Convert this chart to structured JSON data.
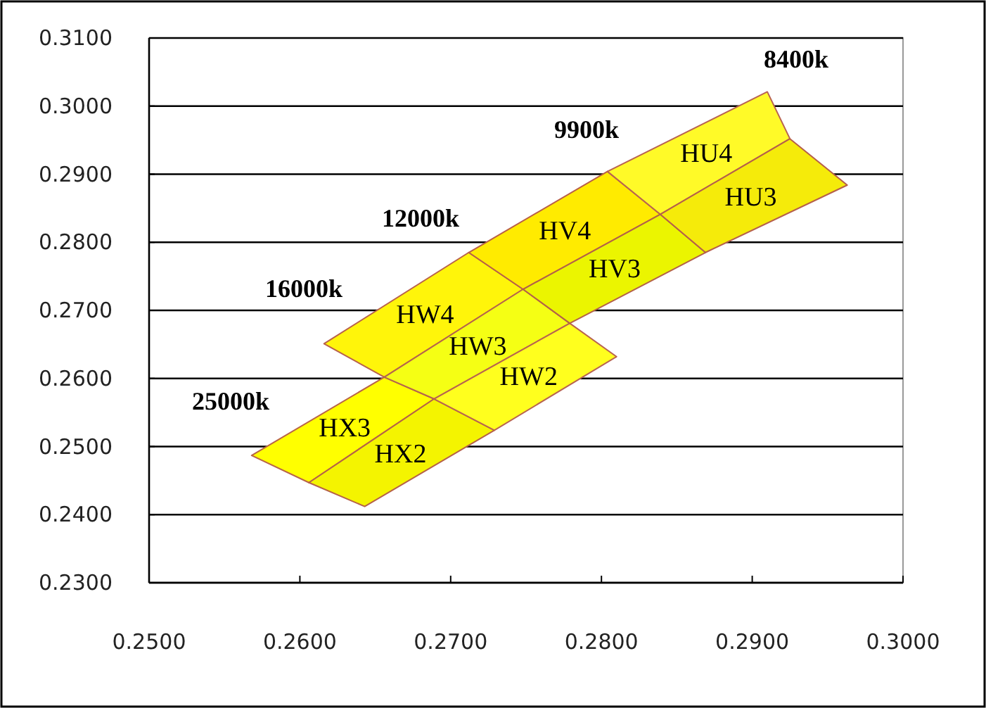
{
  "chart_data": {
    "type": "area",
    "xlim": [
      0.25,
      0.3
    ],
    "ylim": [
      0.23,
      0.31
    ],
    "xticks": [
      {
        "value": 0.25,
        "label": "0.2500"
      },
      {
        "value": 0.26,
        "label": "0.2600"
      },
      {
        "value": 0.27,
        "label": "0.2700"
      },
      {
        "value": 0.28,
        "label": "0.2800"
      },
      {
        "value": 0.29,
        "label": "0.2900"
      },
      {
        "value": 0.3,
        "label": "0.3000"
      }
    ],
    "yticks": [
      {
        "value": 0.23,
        "label": "0.2300"
      },
      {
        "value": 0.24,
        "label": "0.2400"
      },
      {
        "value": 0.25,
        "label": "0.2500"
      },
      {
        "value": 0.26,
        "label": "0.2600"
      },
      {
        "value": 0.27,
        "label": "0.2700"
      },
      {
        "value": 0.28,
        "label": "0.2800"
      },
      {
        "value": 0.29,
        "label": "0.2900"
      },
      {
        "value": 0.3,
        "label": "0.3000"
      },
      {
        "value": 0.31,
        "label": "0.3100"
      }
    ],
    "grid": "y",
    "series": [
      {
        "name": "HX3",
        "color": "#ffff00",
        "x": [
          0.2568,
          0.2656,
          0.2689,
          0.2606,
          0.2568
        ],
        "values": [
          0.2487,
          0.2602,
          0.257,
          0.2447,
          0.2487
        ]
      },
      {
        "name": "HX2",
        "color": "#f4f400",
        "x": [
          0.2606,
          0.2689,
          0.2729,
          0.2643,
          0.2606
        ],
        "values": [
          0.2447,
          0.257,
          0.2524,
          0.2412,
          0.2447
        ]
      },
      {
        "name": "HW4",
        "color": "#fff50a",
        "x": [
          0.2616,
          0.2712,
          0.2748,
          0.2656,
          0.2616
        ],
        "values": [
          0.2651,
          0.2785,
          0.2731,
          0.2602,
          0.2651
        ]
      },
      {
        "name": "HW3",
        "color": "#f5ff14",
        "x": [
          0.2656,
          0.2748,
          0.2779,
          0.2689,
          0.2656
        ],
        "values": [
          0.2602,
          0.2731,
          0.2681,
          0.257,
          0.2602
        ]
      },
      {
        "name": "HW2",
        "color": "#ffff1e",
        "x": [
          0.2689,
          0.2779,
          0.281,
          0.2729,
          0.2689
        ],
        "values": [
          0.257,
          0.2681,
          0.2632,
          0.2524,
          0.257
        ]
      },
      {
        "name": "HV4",
        "color": "#ffeb00",
        "x": [
          0.2712,
          0.2804,
          0.2839,
          0.2748,
          0.2712
        ],
        "values": [
          0.2785,
          0.2904,
          0.2841,
          0.2731,
          0.2785
        ]
      },
      {
        "name": "HV3",
        "color": "#ebf500",
        "x": [
          0.2748,
          0.2839,
          0.2869,
          0.2779,
          0.2748
        ],
        "values": [
          0.2731,
          0.2841,
          0.2785,
          0.2681,
          0.2731
        ]
      },
      {
        "name": "HU4",
        "color": "#fffa28",
        "x": [
          0.2804,
          0.291,
          0.2925,
          0.2839,
          0.2804
        ],
        "values": [
          0.2904,
          0.3021,
          0.2952,
          0.2841,
          0.2904
        ]
      },
      {
        "name": "HU3",
        "color": "#f5eb0a",
        "x": [
          0.2839,
          0.2925,
          0.2963,
          0.2869,
          0.2839
        ],
        "values": [
          0.2841,
          0.2952,
          0.2884,
          0.2785,
          0.2841
        ]
      }
    ],
    "annotations": [
      "8400k",
      "9900k",
      "12000k",
      "16000k",
      "25000k"
    ]
  }
}
